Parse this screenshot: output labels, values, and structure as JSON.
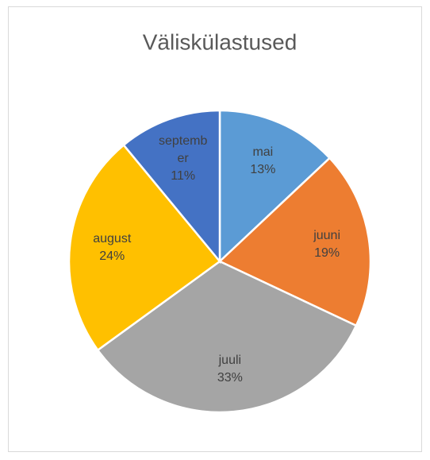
{
  "chart_data": {
    "type": "pie",
    "title": "Väliskülastused",
    "categories": [
      "mai",
      "juuni",
      "juuli",
      "august",
      "september"
    ],
    "values": [
      13,
      19,
      33,
      24,
      11
    ],
    "value_labels": [
      "13%",
      "19%",
      "33%",
      "24%",
      "11%"
    ],
    "colors": [
      "#5b9bd5",
      "#ed7d31",
      "#a5a5a5",
      "#ffc000",
      "#4472c4"
    ]
  }
}
